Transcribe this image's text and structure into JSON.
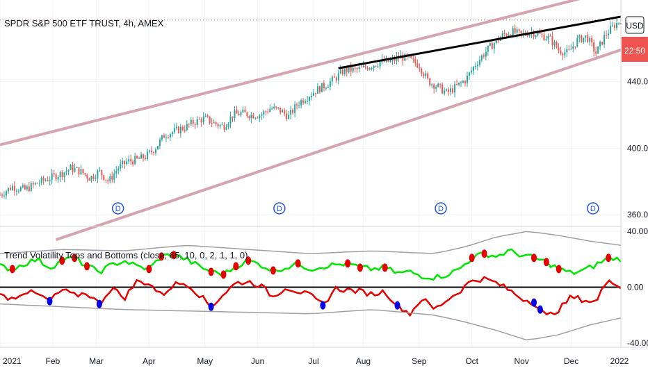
{
  "chart_data": [
    {
      "type": "candlestick",
      "title": "SPDR S&P 500 ETF TRUST, 4h, AMEX",
      "currency_label": "USD",
      "price_flag": "22:50",
      "y_ticks": [
        "360.00",
        "400.00",
        "440.00"
      ],
      "y_tick_values": [
        360,
        400,
        440
      ],
      "ylim": [
        353,
        489
      ],
      "current_price": 477,
      "dividend_badge": "D",
      "dividend_months": [
        "Mar",
        "Jun",
        "Sep",
        "Dec"
      ],
      "trend_points": [
        [
          0.0,
          372
        ],
        [
          0.02,
          377
        ],
        [
          0.04,
          375
        ],
        [
          0.06,
          379
        ],
        [
          0.08,
          382
        ],
        [
          0.1,
          385
        ],
        [
          0.115,
          388
        ],
        [
          0.13,
          386
        ],
        [
          0.145,
          382
        ],
        [
          0.16,
          386
        ],
        [
          0.175,
          380
        ],
        [
          0.19,
          388
        ],
        [
          0.205,
          392
        ],
        [
          0.22,
          393
        ],
        [
          0.235,
          395
        ],
        [
          0.25,
          400
        ],
        [
          0.265,
          408
        ],
        [
          0.28,
          410
        ],
        [
          0.3,
          413
        ],
        [
          0.315,
          416
        ],
        [
          0.33,
          418
        ],
        [
          0.345,
          415
        ],
        [
          0.36,
          413
        ],
        [
          0.375,
          420
        ],
        [
          0.39,
          421
        ],
        [
          0.405,
          420
        ],
        [
          0.42,
          420
        ],
        [
          0.435,
          424
        ],
        [
          0.45,
          423
        ],
        [
          0.465,
          419
        ],
        [
          0.48,
          427
        ],
        [
          0.495,
          431
        ],
        [
          0.51,
          435
        ],
        [
          0.525,
          438
        ],
        [
          0.54,
          442
        ],
        [
          0.555,
          447
        ],
        [
          0.57,
          447
        ],
        [
          0.585,
          448
        ],
        [
          0.6,
          450
        ],
        [
          0.615,
          452
        ],
        [
          0.63,
          452
        ],
        [
          0.645,
          455
        ],
        [
          0.66,
          453
        ],
        [
          0.675,
          450
        ],
        [
          0.69,
          440
        ],
        [
          0.705,
          437
        ],
        [
          0.72,
          433
        ],
        [
          0.735,
          437
        ],
        [
          0.75,
          441
        ],
        [
          0.765,
          450
        ],
        [
          0.78,
          457
        ],
        [
          0.795,
          463
        ],
        [
          0.81,
          468
        ],
        [
          0.825,
          470
        ],
        [
          0.84,
          468
        ],
        [
          0.855,
          470
        ],
        [
          0.87,
          468
        ],
        [
          0.885,
          466
        ],
        [
          0.9,
          459
        ],
        [
          0.915,
          457
        ],
        [
          0.93,
          465
        ],
        [
          0.945,
          467
        ],
        [
          0.96,
          457
        ],
        [
          0.975,
          468
        ],
        [
          0.99,
          474
        ],
        [
          1.0,
          477
        ]
      ],
      "channel_upper": [
        [
          0,
          402
        ],
        [
          1,
          496
        ]
      ],
      "channel_lower": [
        [
          0.09,
          345
        ],
        [
          1,
          459
        ]
      ],
      "channel_color": "#d4a5b1",
      "resistance_line": [
        [
          0.545,
          448
        ],
        [
          1,
          479
        ]
      ],
      "up_color": "#26a69a",
      "down_color": "#ef5350"
    },
    {
      "type": "line",
      "title": "Trend Volatility Tops and Bottoms (close, 65, 10, 0, 2, 1, 1, 0)",
      "y_ticks": [
        "40.00",
        "0.00",
        "-40.00"
      ],
      "y_tick_values": [
        40,
        0,
        -40
      ],
      "ylim": [
        -43,
        43
      ],
      "zero_line_color": "#000000",
      "series": [
        {
          "color": "#00e600",
          "points": [
            [
              0.0,
              15
            ],
            [
              0.02,
              13
            ],
            [
              0.04,
              17
            ],
            [
              0.06,
              20
            ],
            [
              0.08,
              14
            ],
            [
              0.1,
              19
            ],
            [
              0.12,
              21
            ],
            [
              0.14,
              15
            ],
            [
              0.16,
              11
            ],
            [
              0.18,
              16
            ],
            [
              0.2,
              19
            ],
            [
              0.22,
              15
            ],
            [
              0.24,
              13
            ],
            [
              0.26,
              22
            ],
            [
              0.28,
              23
            ],
            [
              0.3,
              20
            ],
            [
              0.32,
              15
            ],
            [
              0.34,
              11
            ],
            [
              0.36,
              9
            ],
            [
              0.38,
              15
            ],
            [
              0.4,
              19
            ],
            [
              0.42,
              16
            ],
            [
              0.44,
              12
            ],
            [
              0.46,
              14
            ],
            [
              0.48,
              17
            ],
            [
              0.5,
              13
            ],
            [
              0.52,
              15
            ],
            [
              0.54,
              16
            ],
            [
              0.56,
              17
            ],
            [
              0.58,
              14
            ],
            [
              0.6,
              13
            ],
            [
              0.62,
              14
            ],
            [
              0.64,
              10
            ],
            [
              0.66,
              11
            ],
            [
              0.68,
              8
            ],
            [
              0.7,
              7
            ],
            [
              0.72,
              9
            ],
            [
              0.74,
              13
            ],
            [
              0.76,
              21
            ],
            [
              0.78,
              24
            ],
            [
              0.8,
              22
            ],
            [
              0.82,
              26
            ],
            [
              0.84,
              23
            ],
            [
              0.86,
              21
            ],
            [
              0.88,
              18
            ],
            [
              0.9,
              13
            ],
            [
              0.92,
              10
            ],
            [
              0.94,
              12
            ],
            [
              0.96,
              16
            ],
            [
              0.98,
              21
            ],
            [
              1.0,
              20
            ]
          ]
        },
        {
          "color": "#e60000",
          "points": [
            [
              0.0,
              -6
            ],
            [
              0.02,
              -8
            ],
            [
              0.04,
              -3
            ],
            [
              0.06,
              -5
            ],
            [
              0.08,
              -10
            ],
            [
              0.1,
              -2
            ],
            [
              0.12,
              -6
            ],
            [
              0.14,
              -4
            ],
            [
              0.16,
              -12
            ],
            [
              0.18,
              0
            ],
            [
              0.2,
              -8
            ],
            [
              0.22,
              4
            ],
            [
              0.24,
              3
            ],
            [
              0.26,
              -6
            ],
            [
              0.28,
              2
            ],
            [
              0.3,
              3
            ],
            [
              0.32,
              -5
            ],
            [
              0.34,
              -14
            ],
            [
              0.36,
              -5
            ],
            [
              0.38,
              3
            ],
            [
              0.4,
              4
            ],
            [
              0.42,
              1
            ],
            [
              0.44,
              -7
            ],
            [
              0.46,
              0
            ],
            [
              0.48,
              -3
            ],
            [
              0.5,
              -6
            ],
            [
              0.52,
              -13
            ],
            [
              0.54,
              -1
            ],
            [
              0.56,
              -2
            ],
            [
              0.58,
              -3
            ],
            [
              0.6,
              -5
            ],
            [
              0.62,
              -3
            ],
            [
              0.64,
              -13
            ],
            [
              0.66,
              -19
            ],
            [
              0.68,
              -8
            ],
            [
              0.7,
              -16
            ],
            [
              0.72,
              -9
            ],
            [
              0.74,
              -3
            ],
            [
              0.76,
              5
            ],
            [
              0.78,
              6
            ],
            [
              0.8,
              3
            ],
            [
              0.82,
              -2
            ],
            [
              0.84,
              -8
            ],
            [
              0.86,
              -11
            ],
            [
              0.88,
              -21
            ],
            [
              0.9,
              -16
            ],
            [
              0.92,
              -7
            ],
            [
              0.94,
              -9
            ],
            [
              0.96,
              -11
            ],
            [
              0.98,
              7
            ],
            [
              1.0,
              -1
            ]
          ]
        },
        {
          "color": "#a0a0a0",
          "points": [
            [
              0.0,
              24
            ],
            [
              0.1,
              27
            ],
            [
              0.2,
              26
            ],
            [
              0.3,
              30
            ],
            [
              0.4,
              27
            ],
            [
              0.5,
              24
            ],
            [
              0.6,
              26
            ],
            [
              0.7,
              24
            ],
            [
              0.75,
              29
            ],
            [
              0.8,
              36
            ],
            [
              0.85,
              40
            ],
            [
              0.9,
              37
            ],
            [
              0.95,
              33
            ],
            [
              1.0,
              30
            ]
          ]
        },
        {
          "color": "#a0a0a0",
          "points": [
            [
              0.0,
              -12
            ],
            [
              0.1,
              -14
            ],
            [
              0.2,
              -16
            ],
            [
              0.3,
              -17
            ],
            [
              0.4,
              -18
            ],
            [
              0.5,
              -19
            ],
            [
              0.6,
              -16
            ],
            [
              0.7,
              -20
            ],
            [
              0.75,
              -25
            ],
            [
              0.8,
              -31
            ],
            [
              0.85,
              -38
            ],
            [
              0.9,
              -34
            ],
            [
              0.95,
              -27
            ],
            [
              1.0,
              -22
            ]
          ]
        }
      ],
      "top_markers": [
        0.02,
        0.1,
        0.12,
        0.14,
        0.24,
        0.26,
        0.28,
        0.34,
        0.36,
        0.38,
        0.4,
        0.44,
        0.48,
        0.56,
        0.58,
        0.62,
        0.76,
        0.78,
        0.86,
        0.88,
        0.9,
        0.98
      ],
      "bottom_markers": [
        0.08,
        0.16,
        0.34,
        0.52,
        0.64,
        0.86,
        0.87
      ],
      "top_marker_color": "#e60000",
      "bottom_marker_color": "#0000e6"
    }
  ],
  "x_axis": {
    "labels": [
      "2021",
      "Feb",
      "Mar",
      "Apr",
      "May",
      "Jun",
      "Jul",
      "Aug",
      "Sep",
      "Oct",
      "Nov",
      "Dec",
      "2022"
    ],
    "positions": [
      0.0,
      0.085,
      0.155,
      0.24,
      0.33,
      0.415,
      0.505,
      0.585,
      0.675,
      0.76,
      0.84,
      0.92,
      1.0
    ]
  }
}
